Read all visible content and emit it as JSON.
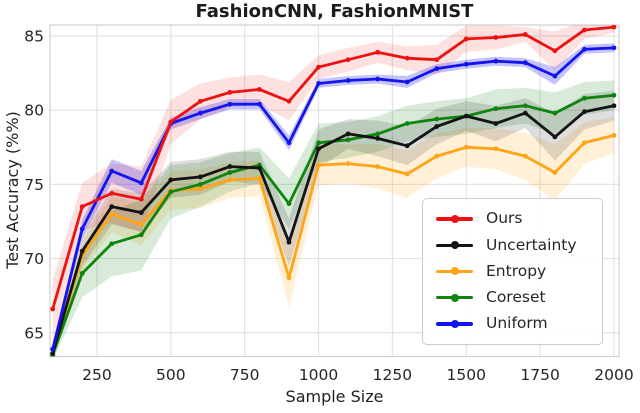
{
  "chart_data": {
    "type": "line",
    "title": "FashionCNN, FashionMNIST",
    "xlabel": "Sample Size",
    "ylabel": "Test Accuracy (%%)",
    "grid": true,
    "legend_position": "lower right",
    "xlim": [
      91,
      2017
    ],
    "ylim": [
      63.4,
      85.74
    ],
    "xticks": [
      250,
      500,
      750,
      1000,
      1250,
      1500,
      1750,
      2000
    ],
    "yticks": [
      65,
      70,
      75,
      80,
      85
    ],
    "x": [
      100,
      200,
      300,
      400,
      500,
      600,
      700,
      800,
      900,
      1000,
      1100,
      1200,
      1300,
      1400,
      1500,
      1600,
      1700,
      1800,
      1900,
      2000
    ],
    "series": [
      {
        "name": "Ours",
        "color": "#ee1111",
        "values": [
          66.6,
          73.5,
          74.4,
          74.0,
          79.2,
          80.6,
          81.2,
          81.4,
          80.6,
          82.9,
          83.4,
          83.9,
          83.5,
          83.4,
          84.8,
          84.9,
          85.1,
          84.0,
          85.4,
          85.6
        ],
        "band": [
          2.0,
          1.6,
          2.0,
          2.2,
          1.5,
          1.2,
          1.0,
          1.0,
          1.3,
          0.8,
          0.8,
          0.7,
          0.8,
          1.0,
          0.9,
          0.8,
          0.5,
          1.3,
          0.6,
          0.4
        ]
      },
      {
        "name": "Uncertainty",
        "color": "#141414",
        "values": [
          63.6,
          70.5,
          73.5,
          73.1,
          75.3,
          75.5,
          76.2,
          76.1,
          71.1,
          77.4,
          78.4,
          78.1,
          77.6,
          78.9,
          79.6,
          79.1,
          79.8,
          78.2,
          79.9,
          80.3
        ],
        "band": [
          0.4,
          1.0,
          1.2,
          1.3,
          1.2,
          1.2,
          1.0,
          1.1,
          1.6,
          1.3,
          1.0,
          1.2,
          1.3,
          1.2,
          1.0,
          1.2,
          1.0,
          1.6,
          1.2,
          1.0
        ]
      },
      {
        "name": "Entropy",
        "color": "#ffa513",
        "values": [
          63.5,
          70.2,
          73.0,
          72.3,
          74.6,
          74.7,
          75.3,
          75.4,
          68.7,
          76.3,
          76.4,
          76.2,
          75.7,
          76.9,
          77.5,
          77.4,
          76.9,
          75.8,
          77.8,
          78.3
        ],
        "band": [
          0.4,
          1.0,
          1.2,
          1.4,
          1.3,
          1.3,
          1.2,
          1.2,
          2.0,
          1.4,
          1.3,
          1.5,
          1.6,
          1.5,
          1.3,
          1.4,
          1.6,
          1.9,
          1.4,
          1.2
        ]
      },
      {
        "name": "Coreset",
        "color": "#0f840f",
        "values": [
          63.5,
          69.0,
          71.0,
          71.6,
          74.5,
          75.0,
          75.8,
          76.3,
          73.7,
          77.8,
          78.0,
          78.4,
          79.1,
          79.4,
          79.6,
          80.1,
          80.3,
          79.8,
          80.8,
          81.0
        ],
        "band": [
          0.4,
          1.6,
          2.2,
          2.4,
          1.8,
          1.5,
          1.3,
          1.2,
          1.7,
          1.3,
          1.2,
          1.2,
          1.2,
          1.2,
          1.2,
          1.3,
          1.2,
          1.4,
          1.1,
          1.0
        ]
      },
      {
        "name": "Uniform",
        "color": "#1414ee",
        "values": [
          63.9,
          72.0,
          75.9,
          75.1,
          79.1,
          79.8,
          80.4,
          80.4,
          77.8,
          81.8,
          82.0,
          82.1,
          81.9,
          82.8,
          83.1,
          83.3,
          83.2,
          82.3,
          84.1,
          84.2
        ],
        "band": [
          0.3,
          0.6,
          0.8,
          0.8,
          0.4,
          0.4,
          0.35,
          0.35,
          0.5,
          0.3,
          0.3,
          0.3,
          0.4,
          0.3,
          0.3,
          0.3,
          0.3,
          0.6,
          0.3,
          0.3
        ]
      }
    ]
  }
}
